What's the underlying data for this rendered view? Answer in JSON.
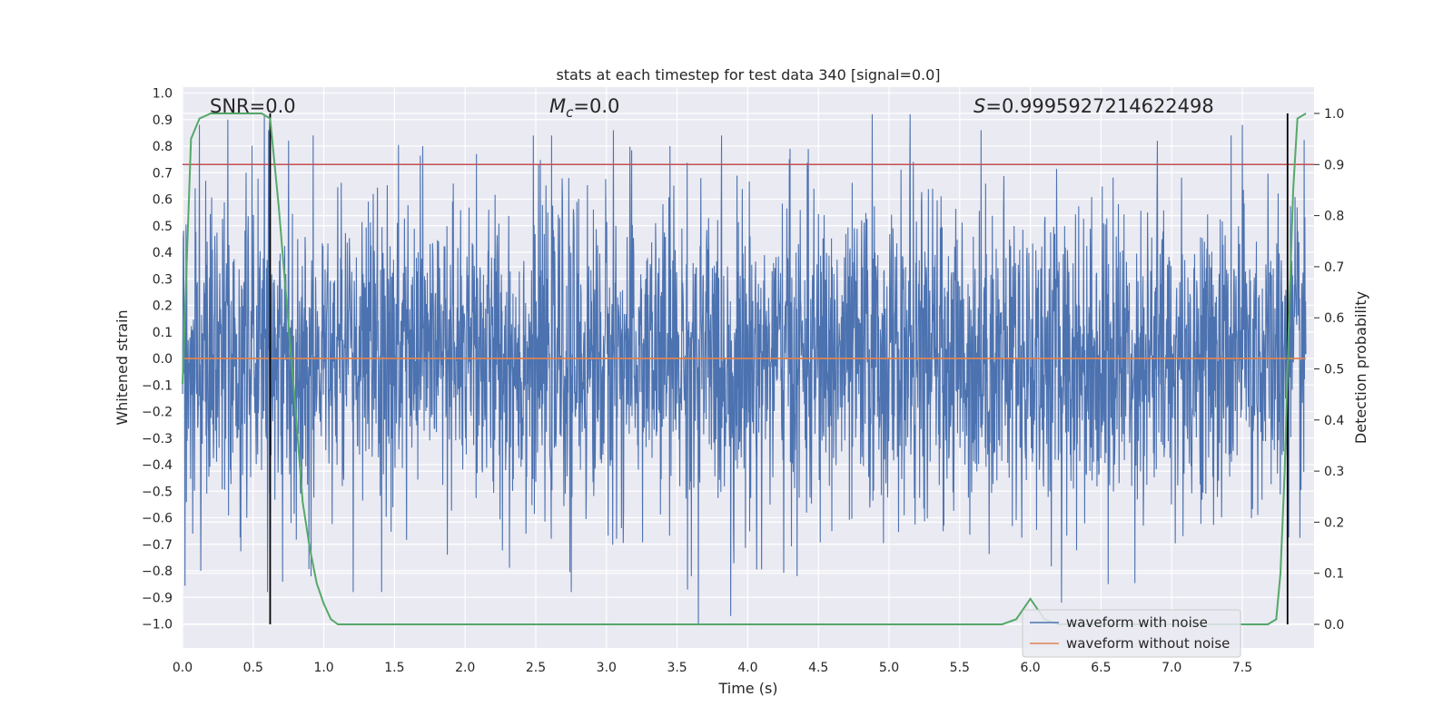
{
  "chart_data": {
    "type": "line",
    "title": "stats at each timestep for test data 340 [signal=0.0]",
    "xlabel": "Time (s)",
    "ylabel": "Whitened strain",
    "y2label": "Detection probability",
    "xlim": [
      0.0,
      8.0
    ],
    "ylim": [
      -1.1,
      1.1
    ],
    "y2lim": [
      -0.05,
      1.05
    ],
    "xticks": [
      "0.0",
      "0.5",
      "1.0",
      "1.5",
      "2.0",
      "2.5",
      "3.0",
      "3.5",
      "4.0",
      "4.5",
      "5.0",
      "5.5",
      "6.0",
      "6.5",
      "7.0",
      "7.5"
    ],
    "yticks": [
      "1.0",
      "0.9",
      "0.8",
      "0.7",
      "0.6",
      "0.5",
      "0.4",
      "0.3",
      "0.2",
      "0.1",
      "0.0",
      "−0.1",
      "−0.2",
      "−0.3",
      "−0.4",
      "−0.5",
      "−0.6",
      "−0.7",
      "−0.8",
      "−0.9",
      "−1.0"
    ],
    "y2ticks": [
      "1.0",
      "0.9",
      "0.8",
      "0.7",
      "0.6",
      "0.5",
      "0.4",
      "0.3",
      "0.2",
      "0.1",
      "0.0"
    ],
    "annotations": {
      "snr": "SNR=0.0",
      "mc_symbol": "M",
      "mc_sub": "c",
      "mc_value": "=0.0",
      "s_symbol": "S",
      "s_value": "=0.9995927214622498"
    },
    "threshold_line": {
      "axis": "right",
      "y": 0.9,
      "color": "#c44e52"
    },
    "vertical_markers_x": [
      0.62,
      7.82
    ],
    "series": [
      {
        "name": "waveform with noise",
        "axis": "left",
        "color": "#4c72b0",
        "style": "dense noise",
        "x_range": [
          0.0,
          7.95
        ],
        "typical_amplitude": 0.4,
        "peak_max": 0.93,
        "peak_min": -1.0,
        "spikes": [
          [
            0.12,
            0.88
          ],
          [
            0.13,
            -0.8
          ],
          [
            0.32,
            0.9
          ],
          [
            0.58,
            0.92
          ],
          [
            0.61,
            0.86
          ],
          [
            0.75,
            0.82
          ],
          [
            1.35,
            0.62
          ],
          [
            1.41,
            -0.88
          ],
          [
            1.7,
            0.8
          ],
          [
            2.08,
            0.77
          ],
          [
            2.75,
            -0.88
          ],
          [
            3.05,
            0.86
          ],
          [
            3.45,
            0.8
          ],
          [
            3.6,
            -0.82
          ],
          [
            3.65,
            -1.0
          ],
          [
            3.88,
            -0.97
          ],
          [
            4.3,
            0.79
          ],
          [
            4.35,
            -0.82
          ],
          [
            4.88,
            0.92
          ],
          [
            5.15,
            0.92
          ],
          [
            5.65,
            0.86
          ],
          [
            6.22,
            -0.92
          ],
          [
            6.55,
            -0.85
          ],
          [
            6.9,
            0.82
          ],
          [
            7.5,
            0.88
          ]
        ]
      },
      {
        "name": "waveform without noise",
        "axis": "left",
        "color": "#dd8452",
        "x": [
          0.0,
          7.95
        ],
        "y": [
          0.0,
          0.0
        ]
      },
      {
        "name": "detection probability",
        "axis": "right",
        "color": "#55a868",
        "x": [
          0.0,
          0.06,
          0.12,
          0.2,
          0.3,
          0.4,
          0.5,
          0.56,
          0.62,
          0.68,
          0.74,
          0.8,
          0.85,
          0.9,
          0.95,
          1.0,
          1.05,
          1.1,
          1.15,
          5.7,
          5.8,
          5.9,
          6.0,
          6.1,
          6.2,
          6.3,
          7.68,
          7.74,
          7.77,
          7.8,
          7.83,
          7.86,
          7.89,
          7.95
        ],
        "y": [
          0.47,
          0.95,
          0.99,
          1.0,
          1.0,
          1.0,
          1.0,
          1.0,
          0.99,
          0.82,
          0.62,
          0.42,
          0.24,
          0.15,
          0.08,
          0.04,
          0.01,
          0.0,
          0.0,
          0.0,
          0.0,
          0.01,
          0.05,
          0.01,
          0.0,
          0.0,
          0.0,
          0.01,
          0.1,
          0.3,
          0.6,
          0.85,
          0.99,
          1.0
        ]
      }
    ],
    "legend": {
      "placement": "lower-right",
      "entries": [
        {
          "label": "waveform with noise",
          "color": "#4c72b0"
        },
        {
          "label": "waveform without noise",
          "color": "#dd8452"
        }
      ]
    },
    "colors": {
      "background": "#eaeaf2",
      "grid": "#ffffff",
      "text": "#262626"
    }
  }
}
